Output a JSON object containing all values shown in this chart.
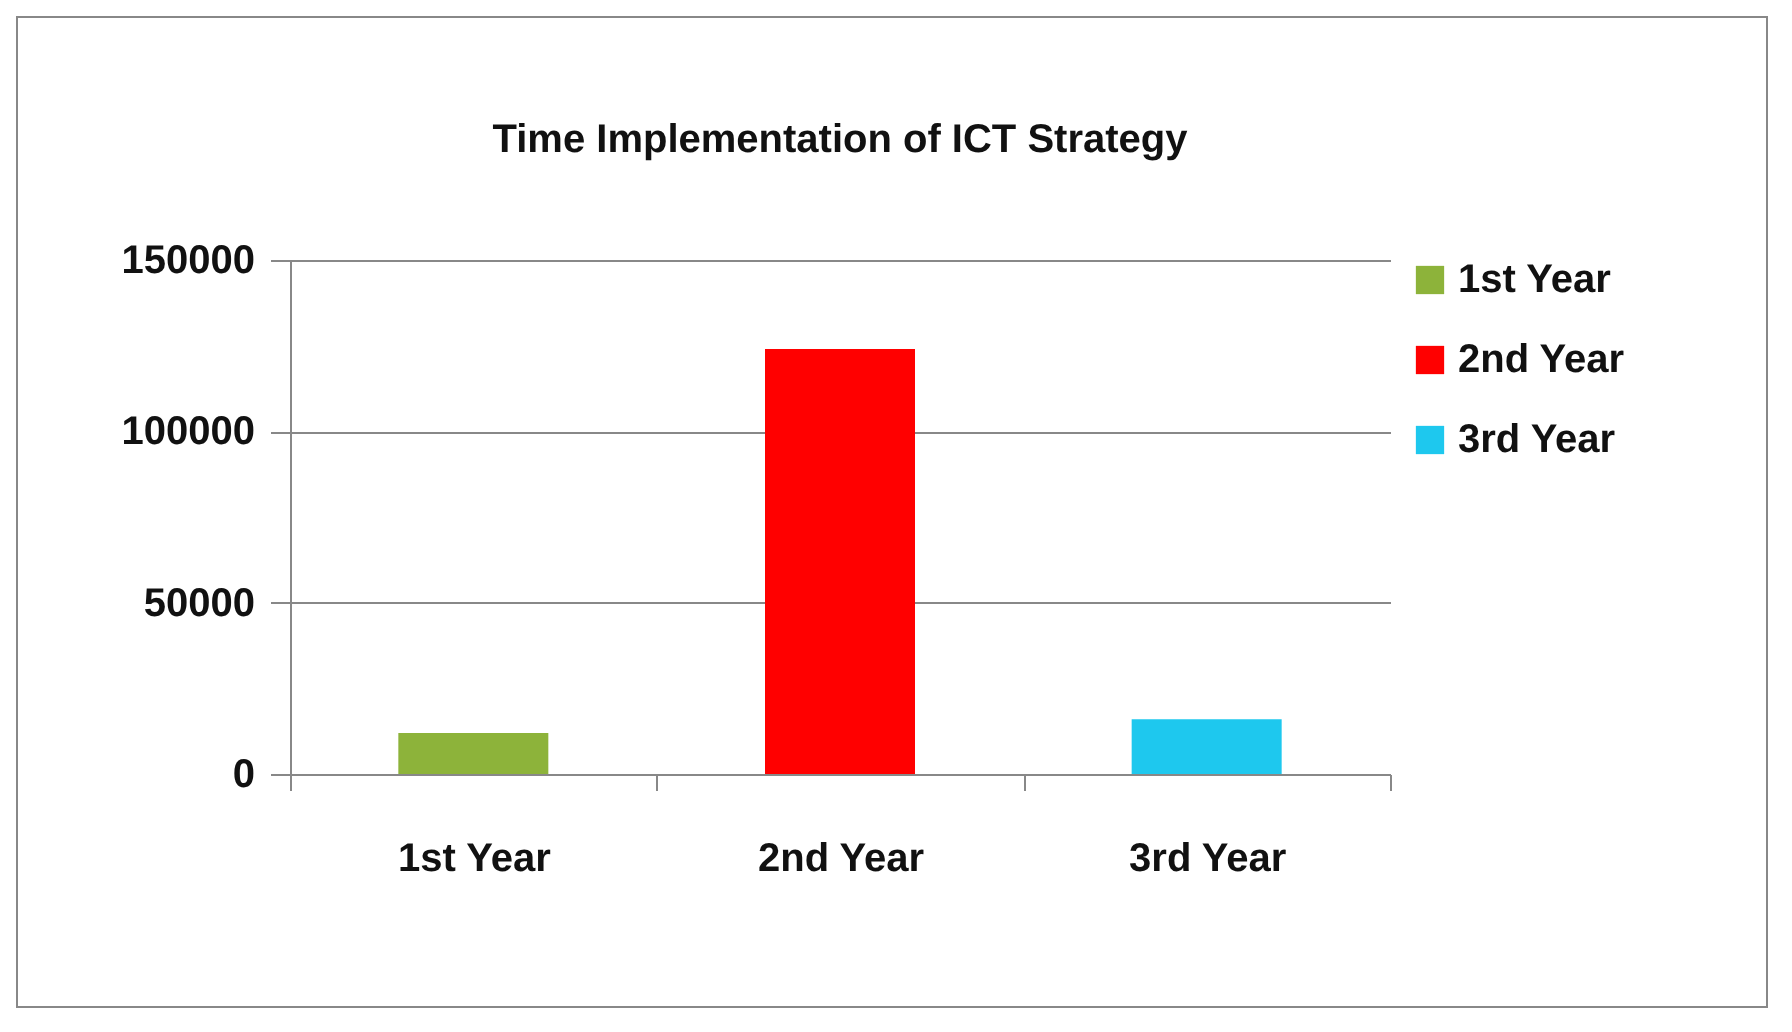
{
  "chart_data": {
    "type": "bar",
    "title": "Time Implementation of ICT Strategy",
    "categories": [
      "1st Year",
      "2nd Year",
      "3rd Year"
    ],
    "series": [
      {
        "name": "1st Year",
        "color": "#8db33a",
        "values": [
          12000,
          null,
          null
        ]
      },
      {
        "name": "2nd Year",
        "color": "#ff0000",
        "values": [
          null,
          124000,
          null
        ]
      },
      {
        "name": "3rd Year",
        "color": "#1ec8ee",
        "values": [
          null,
          null,
          16000
        ]
      }
    ],
    "ylim": [
      0,
      150000
    ],
    "yticks": [
      0,
      50000,
      100000,
      150000
    ],
    "grid": "y",
    "legend": "right"
  }
}
